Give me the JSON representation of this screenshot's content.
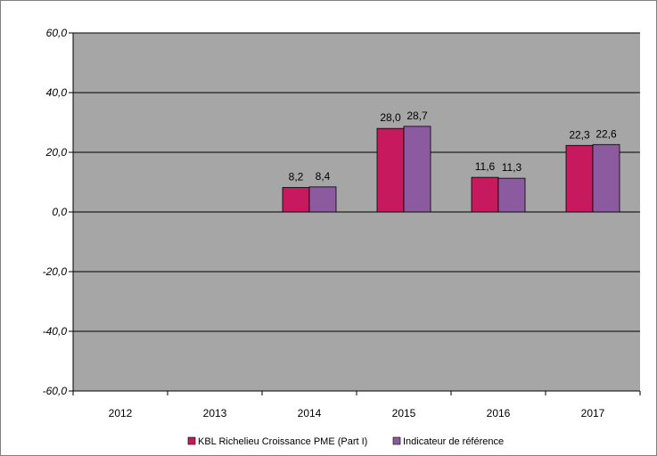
{
  "chart_data": {
    "type": "bar",
    "categories": [
      "2012",
      "2013",
      "2014",
      "2015",
      "2016",
      "2017"
    ],
    "series": [
      {
        "name": "KBL Richelieu Croissance PME (Part I)",
        "color": "#C71A5E",
        "values": [
          null,
          null,
          8.2,
          28.0,
          11.6,
          22.3
        ]
      },
      {
        "name": "Indicateur de référence",
        "color": "#8C5A9E",
        "values": [
          null,
          null,
          8.4,
          28.7,
          11.3,
          22.6
        ]
      }
    ],
    "data_labels": [
      [
        "",
        "",
        "8,2",
        "28,0",
        "11,6",
        "22,3"
      ],
      [
        "",
        "",
        "8,4",
        "28,7",
        "11,3",
        "22,6"
      ]
    ],
    "y_ticks": [
      60,
      40,
      20,
      0,
      -20,
      -40,
      -60
    ],
    "y_tick_labels": [
      "60,0",
      "40,0",
      "20,0",
      "0,0",
      "-20,0",
      "-40,0",
      "-60,0"
    ],
    "ylim": [
      -60,
      60
    ],
    "grid": true,
    "legend_position": "bottom",
    "plot_background": "#A6A6A6",
    "title": "",
    "xlabel": "",
    "ylabel": ""
  }
}
